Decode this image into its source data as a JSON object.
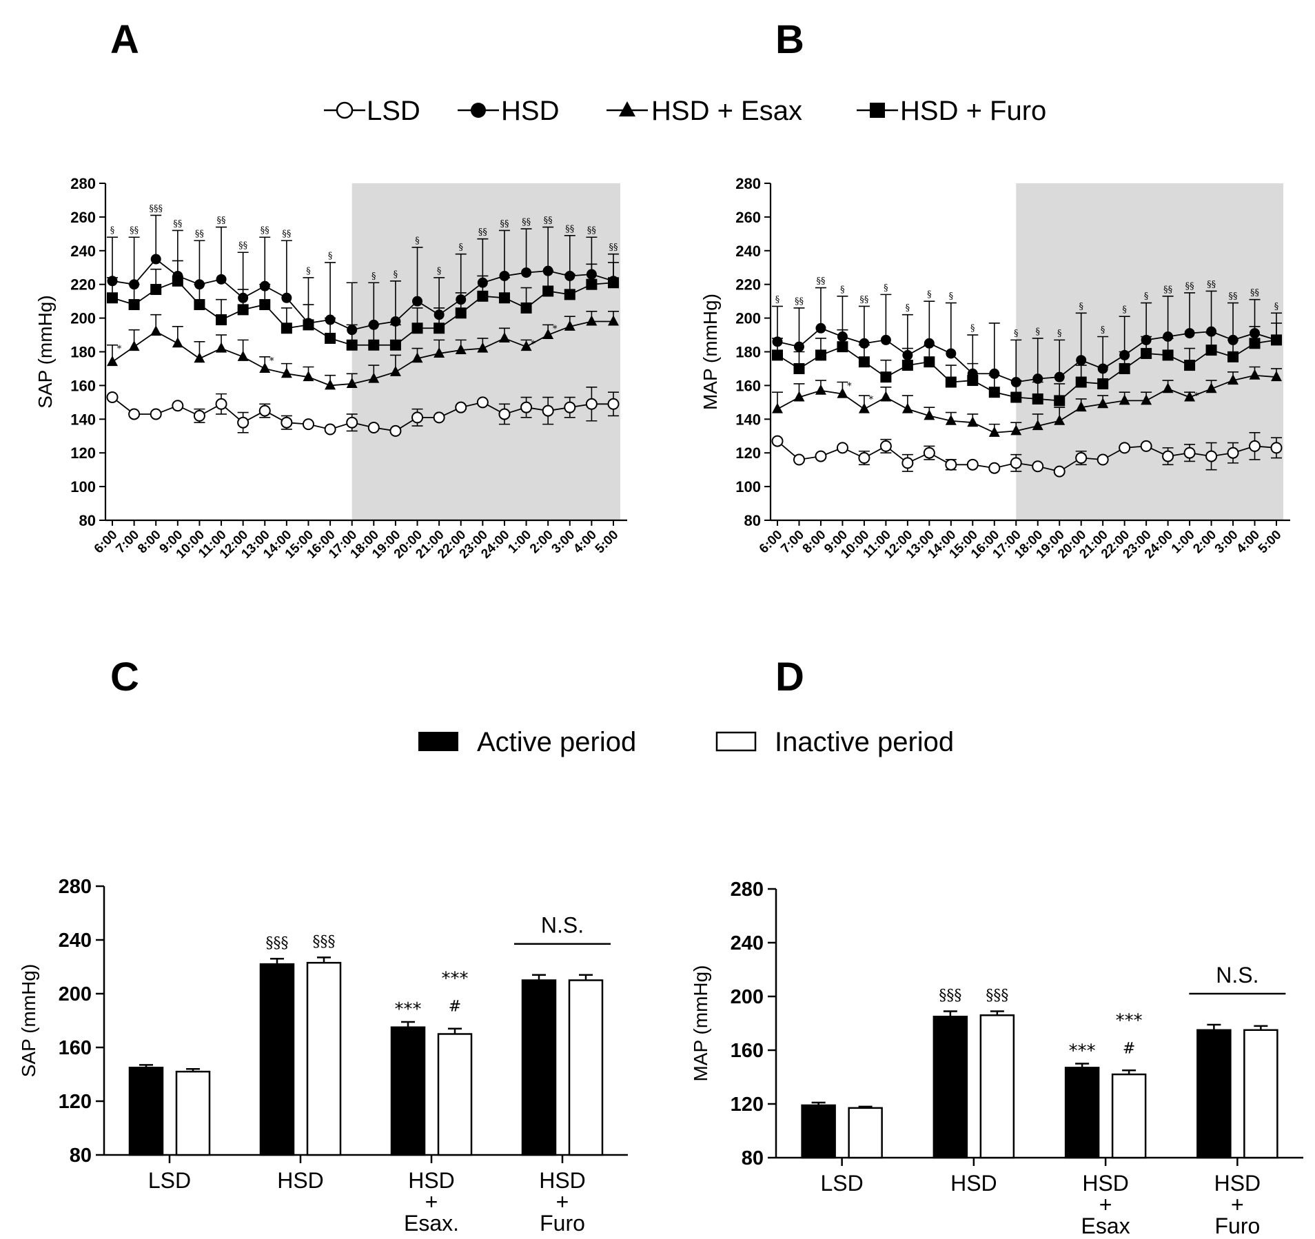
{
  "panels": {
    "A": "A",
    "B": "B",
    "C": "C",
    "D": "D"
  },
  "legend_top": [
    {
      "label": "LSD",
      "marker": "open-circle"
    },
    {
      "label": "HSD",
      "marker": "filled-circle"
    },
    {
      "label": "HSD + Esax",
      "marker": "filled-triangle"
    },
    {
      "label": "HSD + Furo",
      "marker": "filled-square"
    }
  ],
  "legend_bottom": [
    {
      "label": "Active period",
      "fill": "#000000"
    },
    {
      "label": "Inactive period",
      "fill": "#ffffff"
    }
  ],
  "chart_data": [
    {
      "id": "A",
      "type": "line",
      "ylabel": "SAP (mmHg)",
      "ylim": [
        80,
        280
      ],
      "yticks": [
        80,
        100,
        120,
        140,
        160,
        180,
        200,
        220,
        240,
        260,
        280
      ],
      "x": [
        "6:00",
        "7:00",
        "8:00",
        "9:00",
        "10:00",
        "11:00",
        "12:00",
        "13:00",
        "14:00",
        "15:00",
        "16:00",
        "17:00",
        "18:00",
        "19:00",
        "20:00",
        "21:00",
        "22:00",
        "23:00",
        "24:00",
        "1:00",
        "2:00",
        "3:00",
        "4:00",
        "5:00"
      ],
      "shaded_from_index": 11,
      "series": [
        {
          "name": "LSD",
          "marker": "open-circle",
          "values": [
            153,
            143,
            143,
            148,
            142,
            149,
            138,
            145,
            138,
            137,
            134,
            138,
            135,
            133,
            141,
            141,
            147,
            150,
            143,
            147,
            145,
            147,
            149,
            149
          ],
          "err": [
            0,
            0,
            0,
            0,
            4,
            6,
            6,
            4,
            4,
            0,
            0,
            5,
            0,
            0,
            5,
            0,
            0,
            0,
            6,
            6,
            8,
            6,
            10,
            7
          ]
        },
        {
          "name": "HSD",
          "marker": "filled-circle",
          "values": [
            222,
            220,
            235,
            225,
            220,
            223,
            212,
            219,
            212,
            197,
            199,
            193,
            196,
            198,
            210,
            202,
            211,
            221,
            225,
            227,
            228,
            225,
            226,
            222
          ],
          "err": [
            26,
            28,
            26,
            27,
            26,
            31,
            27,
            29,
            34,
            27,
            34,
            28,
            25,
            24,
            32,
            22,
            27,
            26,
            27,
            26,
            26,
            24,
            22,
            16
          ]
        },
        {
          "name": "HSD + Esax",
          "marker": "filled-triangle",
          "values": [
            174,
            183,
            192,
            185,
            176,
            182,
            177,
            170,
            167,
            165,
            160,
            161,
            164,
            168,
            176,
            179,
            181,
            182,
            188,
            183,
            190,
            195,
            198,
            198
          ],
          "err": [
            10,
            10,
            10,
            10,
            10,
            8,
            10,
            7,
            6,
            6,
            6,
            6,
            8,
            10,
            6,
            8,
            6,
            6,
            6,
            4,
            6,
            6,
            6,
            6
          ]
        },
        {
          "name": "HSD + Furo",
          "marker": "filled-square",
          "values": [
            212,
            208,
            217,
            222,
            208,
            199,
            205,
            208,
            194,
            196,
            188,
            184,
            184,
            184,
            194,
            194,
            203,
            213,
            212,
            206,
            216,
            214,
            220,
            221
          ],
          "err": [
            12,
            12,
            12,
            12,
            12,
            12,
            12,
            12,
            12,
            12,
            12,
            12,
            12,
            12,
            12,
            12,
            12,
            12,
            12,
            12,
            12,
            12,
            12,
            12
          ]
        }
      ],
      "sig_labels": [
        "§",
        "§§",
        "§§§",
        "§§",
        "§§",
        "§§",
        "§§",
        "§§",
        "§§",
        "§",
        "§",
        "",
        "§",
        "§",
        "§",
        "§",
        "§",
        "§§",
        "§§",
        "§§",
        "§§",
        "§§",
        "§§",
        "§§"
      ],
      "star_indices": [
        0,
        7,
        19,
        20
      ]
    },
    {
      "id": "B",
      "type": "line",
      "ylabel": "MAP (mmHg)",
      "ylim": [
        80,
        280
      ],
      "yticks": [
        80,
        100,
        120,
        140,
        160,
        180,
        200,
        220,
        240,
        260,
        280
      ],
      "x": [
        "6:00",
        "7:00",
        "8:00",
        "9:00",
        "10:00",
        "11:00",
        "12:00",
        "13:00",
        "14:00",
        "15:00",
        "16:00",
        "17:00",
        "18:00",
        "19:00",
        "20:00",
        "21:00",
        "22:00",
        "23:00",
        "24:00",
        "1:00",
        "2:00",
        "3:00",
        "4:00",
        "5:00"
      ],
      "shaded_from_index": 11,
      "series": [
        {
          "name": "LSD",
          "marker": "open-circle",
          "values": [
            127,
            116,
            118,
            123,
            117,
            124,
            114,
            120,
            113,
            113,
            111,
            114,
            112,
            109,
            117,
            116,
            123,
            124,
            118,
            120,
            118,
            120,
            124,
            123
          ],
          "err": [
            0,
            0,
            0,
            0,
            4,
            4,
            5,
            4,
            3,
            0,
            0,
            5,
            0,
            0,
            4,
            0,
            0,
            0,
            5,
            5,
            8,
            6,
            8,
            6
          ]
        },
        {
          "name": "HSD",
          "marker": "filled-circle",
          "values": [
            186,
            183,
            194,
            189,
            185,
            187,
            178,
            185,
            179,
            167,
            167,
            162,
            164,
            165,
            175,
            170,
            178,
            187,
            189,
            191,
            192,
            187,
            191,
            187
          ],
          "err": [
            21,
            23,
            24,
            24,
            22,
            27,
            24,
            25,
            30,
            23,
            30,
            25,
            24,
            22,
            28,
            19,
            23,
            22,
            24,
            24,
            24,
            22,
            20,
            16
          ]
        },
        {
          "name": "HSD + Furo",
          "marker": "filled-square",
          "values": [
            178,
            170,
            178,
            183,
            174,
            165,
            172,
            174,
            162,
            163,
            156,
            153,
            152,
            151,
            162,
            161,
            170,
            179,
            178,
            172,
            181,
            177,
            185,
            187
          ],
          "err": [
            10,
            10,
            10,
            10,
            10,
            10,
            10,
            10,
            10,
            10,
            10,
            10,
            10,
            10,
            10,
            10,
            10,
            10,
            10,
            10,
            10,
            10,
            10,
            10
          ]
        },
        {
          "name": "HSD + Esax",
          "marker": "filled-triangle",
          "values": [
            146,
            153,
            157,
            155,
            146,
            153,
            146,
            142,
            139,
            138,
            132,
            133,
            136,
            139,
            147,
            149,
            151,
            151,
            158,
            153,
            158,
            163,
            166,
            165
          ],
          "err": [
            10,
            8,
            6,
            7,
            8,
            6,
            8,
            5,
            5,
            5,
            5,
            5,
            7,
            8,
            5,
            5,
            5,
            5,
            5,
            3,
            5,
            5,
            5,
            5
          ]
        }
      ],
      "sig_labels": [
        "§",
        "§§",
        "§§",
        "§",
        "§§",
        "§",
        "§",
        "§",
        "§",
        "§",
        "",
        "§",
        "§",
        "§",
        "§",
        "§",
        "§",
        "§",
        "§§",
        "§§",
        "§§",
        "§§",
        "§§",
        "§"
      ],
      "star_indices": [
        3,
        4,
        19
      ]
    },
    {
      "id": "C",
      "type": "bar",
      "ylabel": "SAP (mmHg)",
      "ylim": [
        80,
        280
      ],
      "yticks": [
        80,
        120,
        160,
        200,
        240,
        280
      ],
      "categories": [
        [
          "LSD"
        ],
        [
          "HSD"
        ],
        [
          "HSD",
          "+",
          "Esax."
        ],
        [
          "HSD",
          "+",
          "Furo"
        ]
      ],
      "series": [
        {
          "name": "Active period",
          "values": [
            145,
            222,
            175,
            210
          ],
          "err": [
            2,
            4,
            4,
            4
          ]
        },
        {
          "name": "Inactive period",
          "values": [
            142,
            223,
            170,
            210
          ],
          "err": [
            2,
            4,
            4,
            4
          ]
        }
      ],
      "annotations": {
        "hsd_active": "§§§",
        "hsd_inactive": "§§§",
        "esax_active": "***",
        "esax_inactive_top": "***",
        "esax_inactive_hash": "#",
        "furo_ns": "N.S."
      }
    },
    {
      "id": "D",
      "type": "bar",
      "ylabel": "MAP (mmHg)",
      "ylim": [
        80,
        280
      ],
      "yticks": [
        80,
        120,
        160,
        200,
        240,
        280
      ],
      "categories": [
        [
          "LSD"
        ],
        [
          "HSD"
        ],
        [
          "HSD",
          "+",
          "Esax"
        ],
        [
          "HSD",
          "+",
          "Furo"
        ]
      ],
      "series": [
        {
          "name": "Active period",
          "values": [
            119,
            185,
            147,
            175
          ],
          "err": [
            2,
            4,
            3,
            4
          ]
        },
        {
          "name": "Inactive period",
          "values": [
            117,
            186,
            142,
            175
          ],
          "err": [
            1,
            3,
            3,
            3
          ]
        }
      ],
      "annotations": {
        "hsd_active": "§§§",
        "hsd_inactive": "§§§",
        "esax_active": "***",
        "esax_inactive_top": "***",
        "esax_inactive_hash": "#",
        "furo_ns": "N.S."
      }
    }
  ]
}
